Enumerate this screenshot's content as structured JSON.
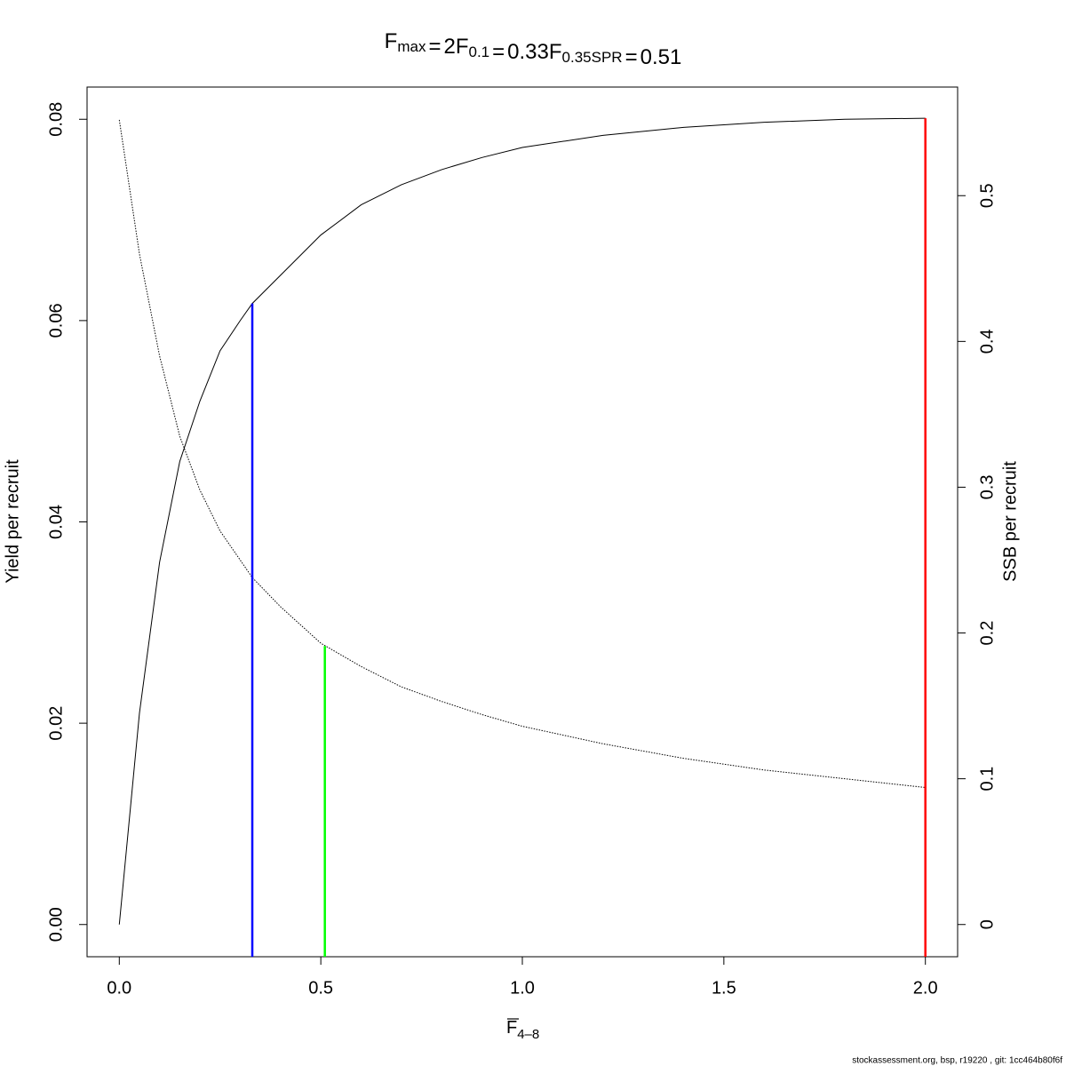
{
  "chart_data": {
    "type": "line",
    "title": [
      {
        "symbol": "F",
        "subscript": "max",
        "equals": "="
      },
      {
        "symbol": "F",
        "subscript": "0.1",
        "equals": "="
      },
      {
        "symbol": "F",
        "subscript": "0.35SPR",
        "equals": "="
      }
    ],
    "x_label": {
      "symbol": "F",
      "subscript": "4–8"
    },
    "y_label": "Yield per recruit",
    "y2_label": "SSB per recruit",
    "footer": "stockassessment.org, bsp, r19220 , git: 1cc464b80f6f",
    "x": [
      0,
      0.05,
      0.1,
      0.15,
      0.2,
      0.25,
      0.3,
      0.33,
      0.4,
      0.5,
      0.6,
      0.7,
      0.8,
      0.9,
      1.0,
      1.2,
      1.4,
      1.6,
      1.8,
      2.0
    ],
    "series": [
      {
        "name": "Yield per recruit",
        "color": "#000000",
        "dashed": false,
        "values": [
          0,
          0.021,
          0.036,
          0.046,
          0.052,
          0.057,
          0.06,
          0.0617,
          0.0645,
          0.0685,
          0.0715,
          0.0735,
          0.075,
          0.0762,
          0.0772,
          0.0784,
          0.0792,
          0.0797,
          0.08,
          0.0801
        ]
      },
      {
        "name": "SSB per recruit",
        "color": "#000000",
        "dashed": true,
        "axis": "y2",
        "values": [
          0.552,
          0.46,
          0.39,
          0.335,
          0.298,
          0.27,
          0.25,
          0.238,
          0.218,
          0.193,
          0.177,
          0.163,
          0.153,
          0.144,
          0.136,
          0.124,
          0.114,
          0.106,
          0.1,
          0.094
        ]
      }
    ],
    "reference_lines": [
      {
        "x": 2,
        "y": 0.0801,
        "color": "#ff0000"
      },
      {
        "x": 0.33,
        "y": 0.0617,
        "color": "#0000ff"
      },
      {
        "x": 0.51,
        "y": 0.191,
        "axis": "y2",
        "color": "#00ff00"
      }
    ],
    "xlim": [
      -0.08,
      2.08
    ],
    "xticks": [
      {
        "value": 0,
        "label": "0.0"
      },
      0.5,
      {
        "value": 1,
        "label": "1.0"
      },
      1.5,
      {
        "value": 2,
        "label": "2.0"
      }
    ],
    "ylim": [
      -0.0032,
      0.0832
    ],
    "yticks": [
      {
        "value": 0,
        "label": "0.00"
      },
      {
        "value": 0.02,
        "label": "0.02"
      },
      {
        "value": 0.04,
        "label": "0.04"
      },
      {
        "value": 0.06,
        "label": "0.06"
      },
      {
        "value": 0.08,
        "label": "0.08"
      }
    ],
    "y2lim": [
      -0.0221,
      0.5745
    ],
    "y2ticks": [
      0,
      0.1,
      0.2,
      0.3,
      0.4,
      0.5
    ],
    "grid": false
  }
}
